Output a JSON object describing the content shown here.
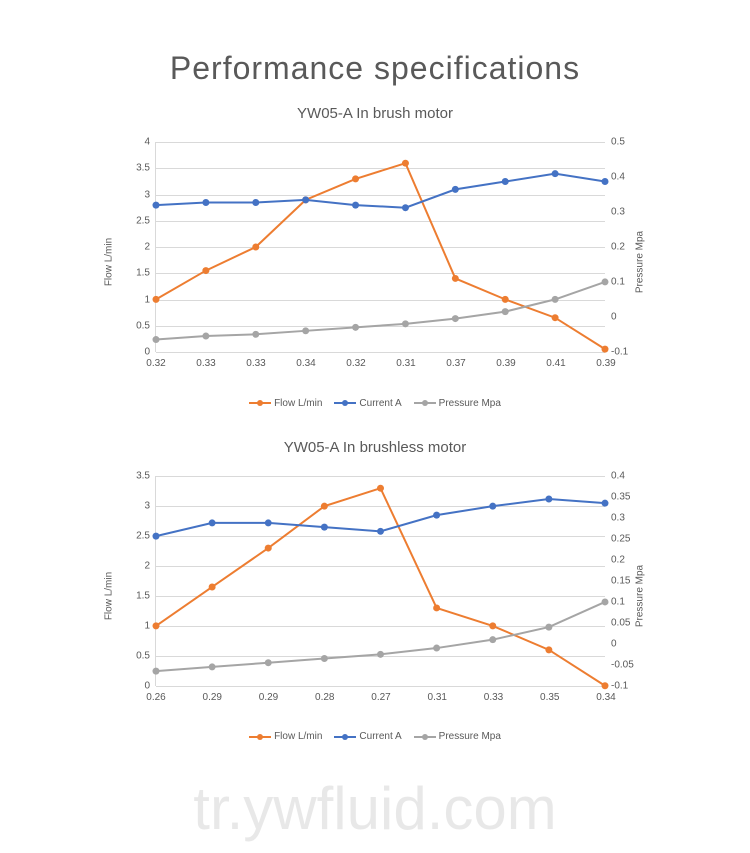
{
  "page_title": "Performance specifications",
  "watermark": "tr.ywfluid.com",
  "colors": {
    "flow": "#ed7d31",
    "current": "#4472c4",
    "pressure": "#a5a5a5",
    "grid": "#d9d9d9",
    "text": "#595959",
    "background": "#ffffff"
  },
  "line_width": 2,
  "marker_radius": 3.5,
  "axis_label_fontsize": 10,
  "tick_fontsize": 10,
  "chart_title_fontsize": 15,
  "page_title_fontsize": 32,
  "charts": [
    {
      "title": "YW05-A In brush motor",
      "x_categories": [
        "0.32",
        "0.33",
        "0.33",
        "0.34",
        "0.32",
        "0.31",
        "0.37",
        "0.39",
        "0.41",
        "0.39"
      ],
      "left_axis": {
        "label": "Flow L/min",
        "min": 0,
        "max": 4,
        "step": 0.5
      },
      "right_axis": {
        "label": "Pressure Mpa",
        "min": -0.1,
        "max": 0.5,
        "step": 0.1
      },
      "series": [
        {
          "name": "Flow L/min",
          "color_key": "flow",
          "axis": "left",
          "values": [
            1.0,
            1.55,
            2.0,
            2.9,
            3.3,
            3.6,
            1.4,
            1.0,
            0.65,
            0.05
          ]
        },
        {
          "name": "Current A",
          "color_key": "current",
          "axis": "left",
          "values": [
            2.8,
            2.85,
            2.85,
            2.9,
            2.8,
            2.75,
            3.1,
            3.25,
            3.4,
            3.25
          ]
        },
        {
          "name": "Pressure Mpa",
          "color_key": "pressure",
          "axis": "right",
          "values": [
            -0.065,
            -0.055,
            -0.05,
            -0.04,
            -0.03,
            -0.02,
            -0.005,
            0.015,
            0.05,
            0.1
          ]
        }
      ]
    },
    {
      "title": "YW05-A In brushless motor",
      "x_categories": [
        "0.26",
        "0.29",
        "0.29",
        "0.28",
        "0.27",
        "0.31",
        "0.33",
        "0.35",
        "0.34"
      ],
      "left_axis": {
        "label": "Flow L/min",
        "min": 0,
        "max": 3.5,
        "step": 0.5
      },
      "right_axis": {
        "label": "Pressure Mpa",
        "min": -0.1,
        "max": 0.4,
        "step": 0.05
      },
      "series": [
        {
          "name": "Flow L/min",
          "color_key": "flow",
          "axis": "left",
          "values": [
            1.0,
            1.65,
            2.3,
            3.0,
            3.3,
            1.3,
            1.0,
            0.6,
            0.0
          ]
        },
        {
          "name": "Current A",
          "color_key": "current",
          "axis": "left",
          "values": [
            2.5,
            2.72,
            2.72,
            2.65,
            2.58,
            2.85,
            3.0,
            3.12,
            3.05
          ]
        },
        {
          "name": "Pressure Mpa",
          "color_key": "pressure",
          "axis": "right",
          "values": [
            -0.065,
            -0.055,
            -0.045,
            -0.035,
            -0.025,
            -0.01,
            0.01,
            0.04,
            0.1
          ]
        }
      ]
    }
  ],
  "legend_labels": [
    "Flow L/min",
    "Current A",
    "Pressure Mpa"
  ]
}
